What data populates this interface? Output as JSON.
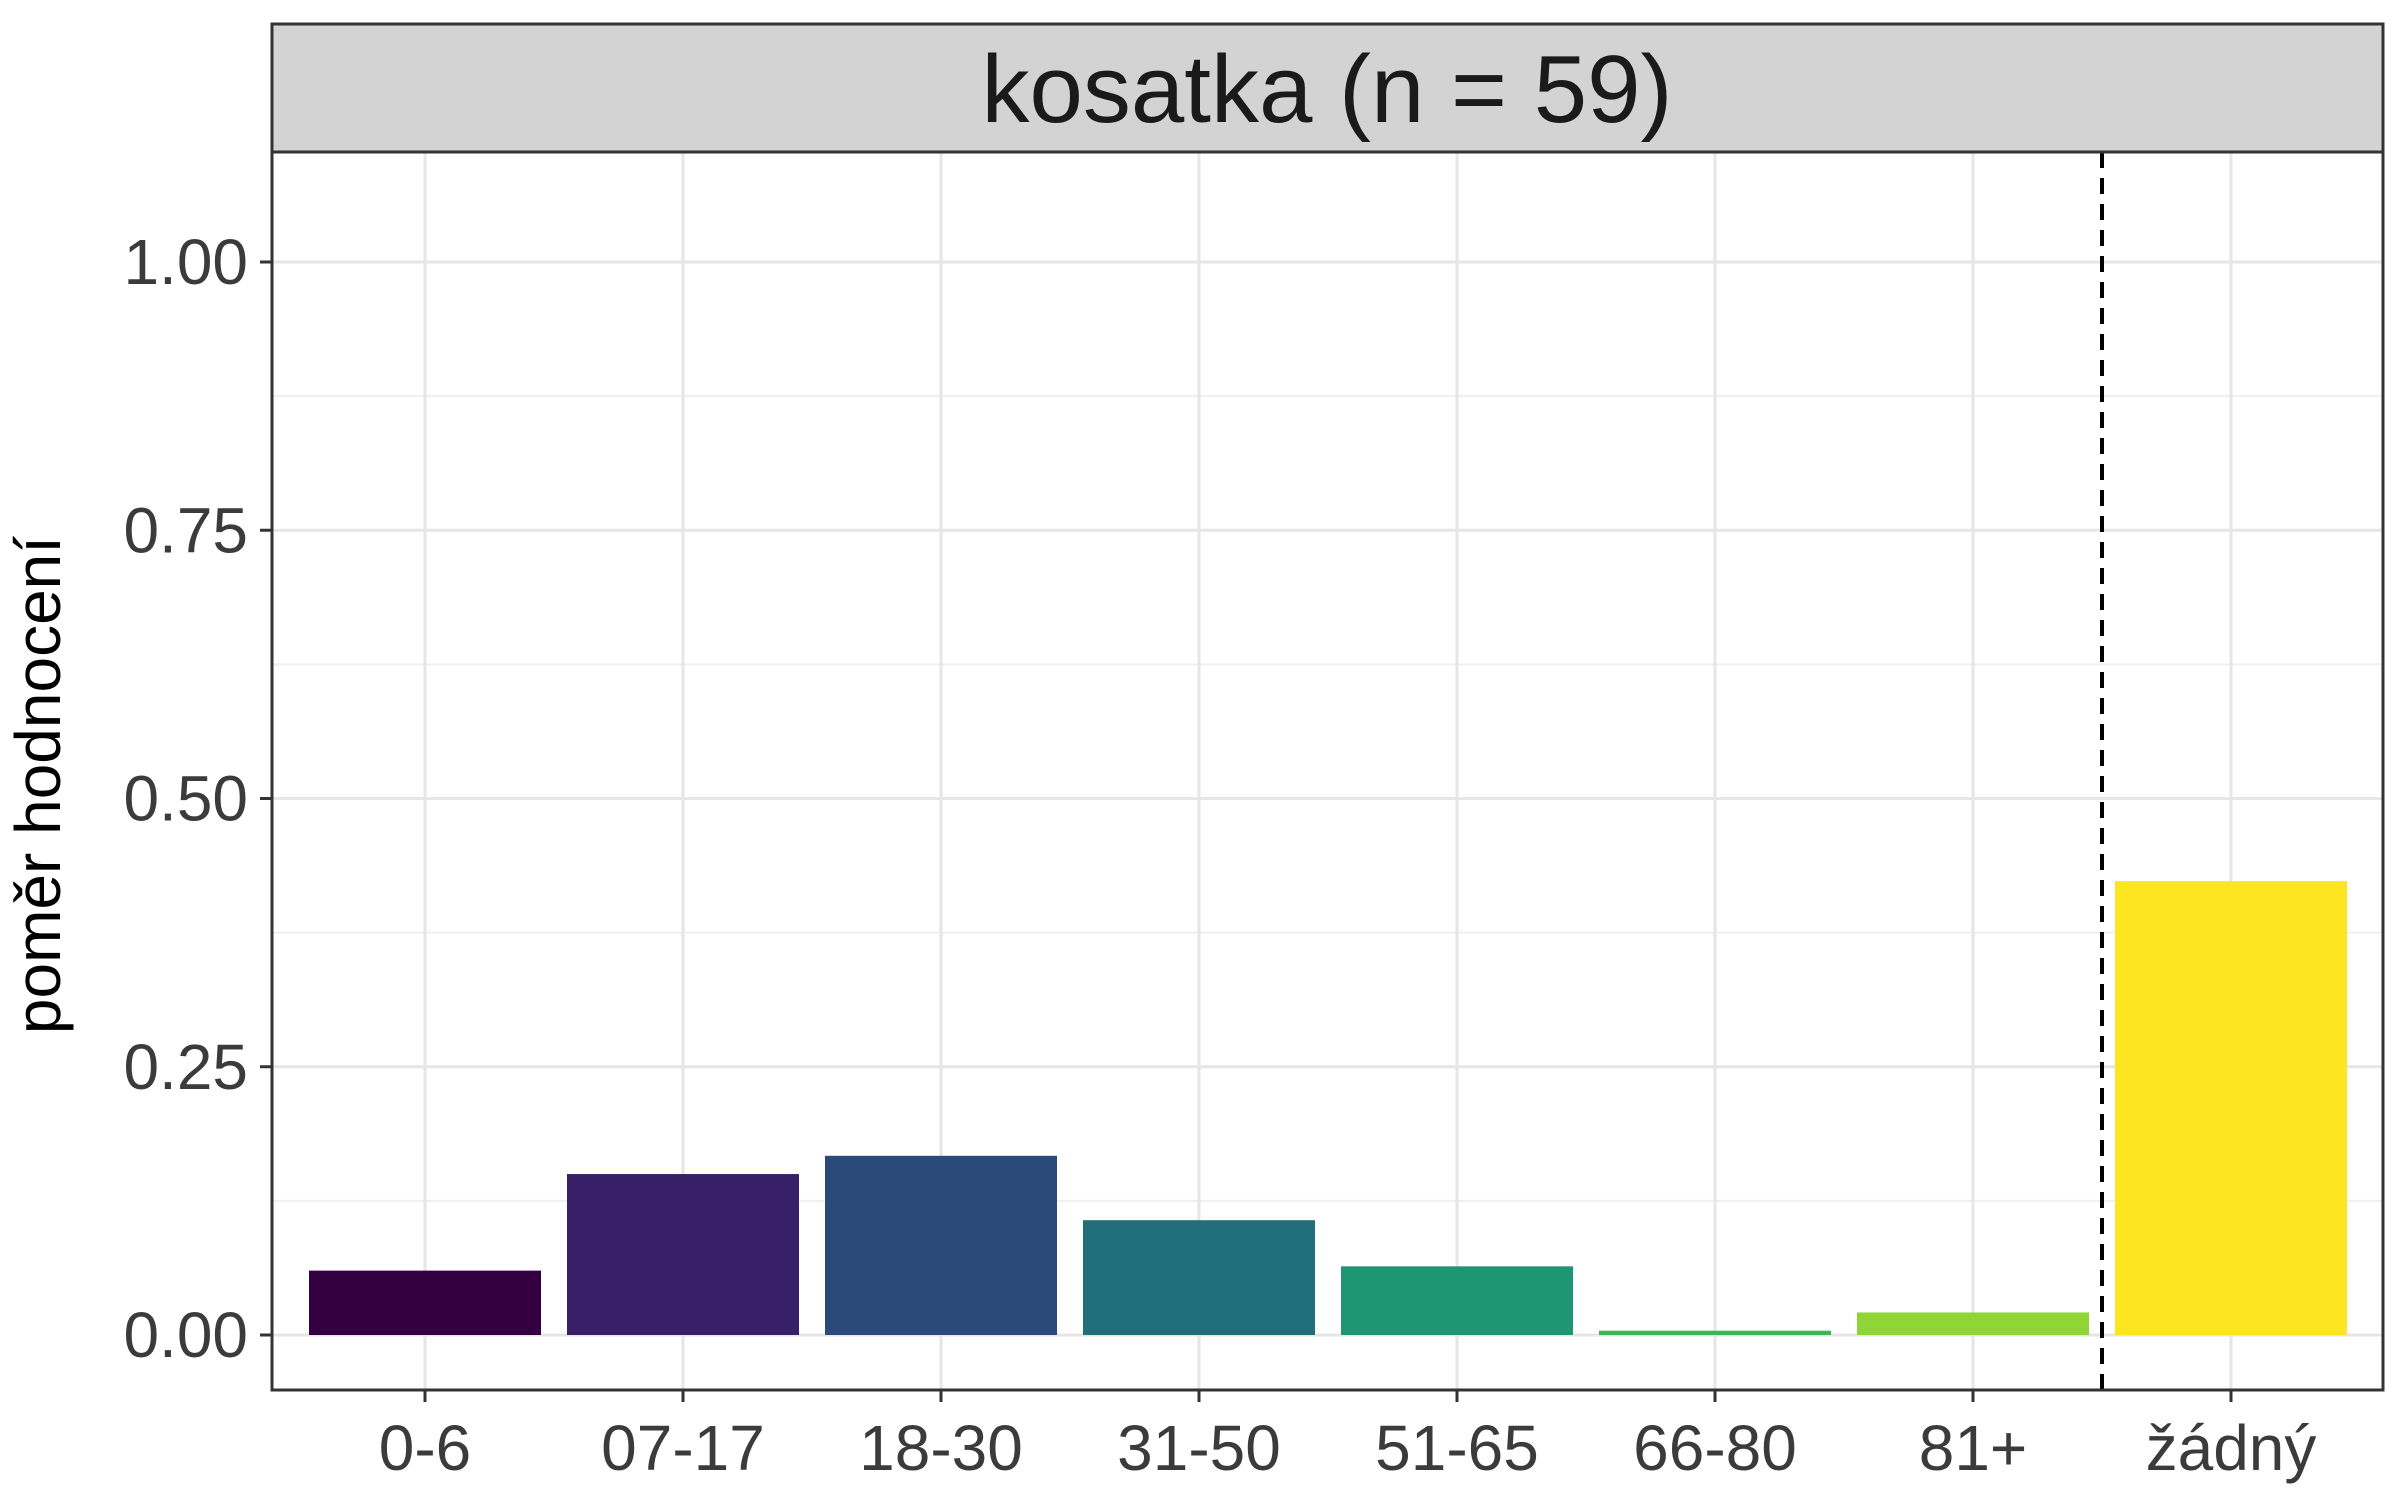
{
  "chart_data": {
    "type": "bar",
    "title": "kosatka (n = 59)",
    "xlabel": "",
    "ylabel": "poměr hodnocení",
    "categories": [
      "0-6",
      "07-17",
      "18-30",
      "31-50",
      "51-65",
      "66-80",
      "81+",
      "žádný"
    ],
    "values": [
      0.06,
      0.15,
      0.167,
      0.107,
      0.064,
      0.004,
      0.021,
      0.423
    ],
    "colors": [
      "#35003f",
      "#372068",
      "#2b4a7a",
      "#206f7a",
      "#1f9673",
      "#3cb555",
      "#8fd535",
      "#fde621"
    ],
    "ylim": [
      0,
      1.1
    ],
    "yticks": [
      0,
      0.25,
      0.5,
      0.75,
      1.0
    ],
    "ytick_labels": [
      "0.00",
      "0.25",
      "0.50",
      "0.75",
      "1.00"
    ],
    "separator_after_category": "81+",
    "grid": true,
    "legend": "none"
  }
}
